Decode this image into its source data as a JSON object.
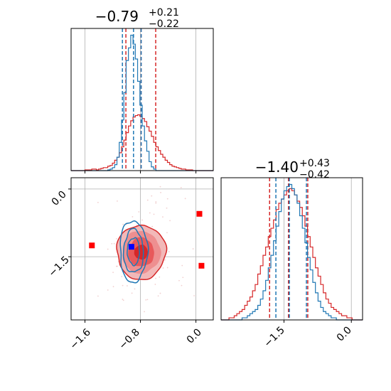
{
  "chart_data": {
    "type": "corner",
    "parameters": 2,
    "panels": [
      {
        "kind": "histogram",
        "param": "x",
        "title": {
          "main": "−0.79",
          "sup": "+0.21",
          "sub": "−0.22"
        },
        "xlim": [
          -1.8,
          0.25
        ],
        "grid": true,
        "series": [
          {
            "color": "#d62728",
            "edges": [
              -1.8,
              0.25
            ],
            "counts": [
              0,
              0,
              0,
              0,
              0,
              0,
              1,
              1,
              1,
              2,
              2,
              1,
              2,
              3,
              4,
              4,
              6,
              7,
              10,
              14,
              18,
              24,
              32,
              41,
              51,
              60,
              67,
              72,
              74,
              75,
              73,
              70,
              66,
              59,
              53,
              46,
              38,
              32,
              27,
              22,
              18,
              14,
              11,
              8,
              6,
              5,
              4,
              3,
              2,
              2,
              1,
              1,
              1,
              0,
              0,
              0,
              0,
              0,
              0,
              0,
              0,
              0
            ],
            "quantiles": [
              -1.01,
              -0.79,
              -0.58
            ]
          },
          {
            "color": "#1f77b4",
            "edges": [
              -1.8,
              0.25
            ],
            "counts": [
              0,
              0,
              0,
              0,
              0,
              0,
              0,
              0,
              0,
              0,
              0,
              0,
              0,
              0,
              0,
              0,
              1,
              2,
              4,
              8,
              18,
              38,
              68,
              105,
              148,
              165,
              182,
              170,
              150,
              120,
              88,
              60,
              40,
              26,
              12,
              5,
              2,
              0,
              0,
              0,
              0,
              0,
              0,
              0,
              0,
              0,
              0,
              0,
              0,
              0,
              0,
              0,
              0,
              0,
              0,
              0,
              0,
              0,
              0,
              0,
              0,
              0
            ],
            "quantiles": [
              -1.06,
              -0.9,
              -0.79
            ]
          }
        ]
      },
      {
        "kind": "histogram",
        "param": "y",
        "title": {
          "main": "−1.40",
          "sup": "+0.43",
          "sub": "−0.42"
        },
        "xlim": [
          -2.9,
          0.25
        ],
        "grid": true,
        "series": [
          {
            "color": "#d62728",
            "edges": [
              -2.9,
              0.25
            ],
            "counts": [
              0,
              0,
              0,
              1,
              1,
              2,
              3,
              4,
              5,
              7,
              9,
              11,
              14,
              17,
              22,
              26,
              31,
              35,
              40,
              44,
              48,
              53,
              56,
              58,
              60,
              62,
              63,
              62,
              60,
              57,
              54,
              50,
              45,
              40,
              35,
              30,
              25,
              21,
              17,
              13,
              10,
              8,
              6,
              5,
              4,
              3,
              2,
              2,
              1,
              1,
              0,
              0,
              0,
              0
            ],
            "quantiles": [
              -1.82,
              -1.4,
              -0.97
            ]
          },
          {
            "color": "#1f77b4",
            "edges": [
              -2.9,
              0.25
            ],
            "counts": [
              0,
              0,
              0,
              0,
              0,
              0,
              0,
              0,
              1,
              1,
              2,
              3,
              4,
              5,
              7,
              10,
              14,
              19,
              25,
              31,
              38,
              45,
              52,
              58,
              62,
              64,
              65,
              63,
              60,
              56,
              50,
              44,
              37,
              30,
              24,
              18,
              13,
              9,
              6,
              4,
              3,
              2,
              1,
              1,
              0,
              0,
              0,
              0,
              0,
              0,
              0,
              0,
              0,
              0
            ],
            "quantiles": [
              -1.68,
              -1.38,
              -1.0
            ]
          }
        ]
      },
      {
        "kind": "contour",
        "params": [
          "x",
          "y"
        ],
        "xlim": [
          -1.8,
          0.25
        ],
        "ylim": [
          -2.9,
          0.25
        ],
        "grid": true,
        "red_fill": [
          "#f2b8b8",
          "#ee8f90",
          "#e8595b",
          "#d62728"
        ],
        "red_levels_sigma": [
          [
            1.6,
            1.4
          ],
          [
            1.25,
            1.1
          ],
          [
            0.85,
            0.75
          ],
          [
            0.45,
            0.38
          ]
        ],
        "red_center": [
          -0.79,
          -1.4
        ],
        "red_scale": [
          0.22,
          0.43
        ],
        "blue_center": [
          -0.9,
          -1.38
        ],
        "blue_scale": [
          0.11,
          0.4
        ],
        "blue_levels_sigma": [
          [
            1.8,
            1.7
          ],
          [
            1.3,
            1.2
          ],
          [
            0.8,
            0.75
          ]
        ],
        "markers_red": [
          [
            -1.5,
            -1.25
          ],
          [
            0.05,
            -0.55
          ],
          [
            0.08,
            -1.7
          ]
        ],
        "marker_blue": [
          -0.93,
          -1.28
        ],
        "x_ticks": [
          -1.6,
          -0.8,
          0.0
        ],
        "x_tick_labels": [
          "−1.6",
          "−0.8",
          "0.0"
        ],
        "y_ticks": [
          0.0,
          -1.5
        ],
        "y_tick_labels": [
          "0.0",
          "−1.5"
        ]
      }
    ],
    "y_hist_ticks": [
      -1.5,
      0.0
    ],
    "y_hist_tick_labels": [
      "−1.5",
      "0.0"
    ]
  }
}
